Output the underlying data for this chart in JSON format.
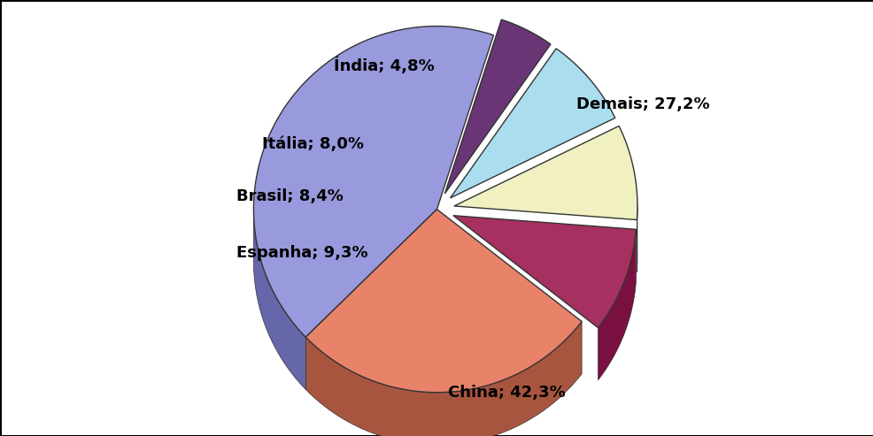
{
  "labels": [
    "China",
    "Demais",
    "Espanha",
    "Brasil",
    "Itália",
    "Índia"
  ],
  "values": [
    42.3,
    27.2,
    9.3,
    8.4,
    8.0,
    4.8
  ],
  "colors_top": [
    "#9999dd",
    "#e8836a",
    "#a63060",
    "#f0f0c0",
    "#aaddee",
    "#6a3575"
  ],
  "colors_side": [
    "#6666aa",
    "#a85540",
    "#7a1040",
    "#c0c098",
    "#7aadbe",
    "#3a1545"
  ],
  "explode": [
    0.0,
    0.0,
    0.04,
    0.04,
    0.04,
    0.04
  ],
  "label_fontsize": 13,
  "label_fontweight": "bold",
  "background_color": "#ffffff",
  "startangle": 72,
  "figsize": [
    9.87,
    4.93
  ],
  "depth": 0.12
}
